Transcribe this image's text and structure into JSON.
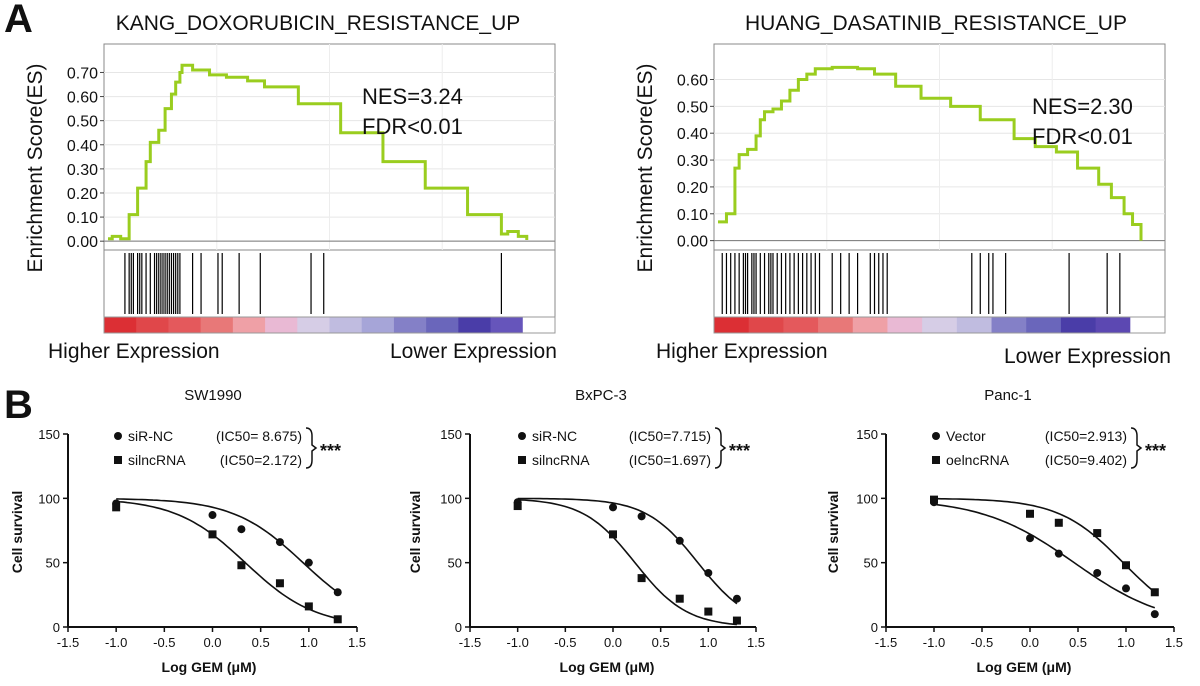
{
  "panel_labels": [
    "A",
    "B"
  ],
  "gsea": [
    {
      "title": "KANG_DOXORUBICIN_RESISTANCE_UP",
      "ylabel": "Enrichment Score(ES)",
      "yticks": [
        "0.00",
        "0.10",
        "0.20",
        "0.30",
        "0.40",
        "0.50",
        "0.60",
        "0.70"
      ],
      "nes": "NES=3.24",
      "fdr": "FDR<0.01",
      "left_label": "Higher Expression",
      "right_label": "Lower Expression",
      "line_color": "#9acd1f",
      "ylim": [
        -0.02,
        0.76
      ],
      "es_curve": [
        [
          0,
          0.01
        ],
        [
          0.01,
          0.02
        ],
        [
          0.03,
          0.01
        ],
        [
          0.05,
          0.11
        ],
        [
          0.07,
          0.22
        ],
        [
          0.09,
          0.33
        ],
        [
          0.1,
          0.41
        ],
        [
          0.12,
          0.46
        ],
        [
          0.135,
          0.55
        ],
        [
          0.15,
          0.61
        ],
        [
          0.16,
          0.66
        ],
        [
          0.17,
          0.7
        ],
        [
          0.175,
          0.73
        ],
        [
          0.2,
          0.71
        ],
        [
          0.24,
          0.69
        ],
        [
          0.28,
          0.68
        ],
        [
          0.33,
          0.665
        ],
        [
          0.37,
          0.64
        ],
        [
          0.45,
          0.57
        ],
        [
          0.55,
          0.45
        ],
        [
          0.65,
          0.33
        ],
        [
          0.75,
          0.22
        ],
        [
          0.85,
          0.11
        ],
        [
          0.93,
          0.03
        ],
        [
          0.945,
          0.04
        ],
        [
          0.97,
          0.02
        ],
        [
          0.99,
          0.005
        ]
      ],
      "hits": [
        0.04,
        0.05,
        0.055,
        0.06,
        0.07,
        0.075,
        0.08,
        0.09,
        0.1,
        0.11,
        0.115,
        0.12,
        0.125,
        0.13,
        0.135,
        0.14,
        0.145,
        0.15,
        0.155,
        0.16,
        0.165,
        0.17,
        0.2,
        0.22,
        0.26,
        0.27,
        0.31,
        0.36,
        0.48,
        0.51,
        0.93
      ],
      "heat_colors": [
        "#dc2f34",
        "#e0474a",
        "#e4595c",
        "#e87878",
        "#efa0a6",
        "#e9b9d4",
        "#d6cde6",
        "#c0bce0",
        "#a6a5d8",
        "#8480c7",
        "#6a66bb",
        "#4a3da8",
        "#6655bb",
        "#ffffff"
      ]
    },
    {
      "title": "HUANG_DASATINIB_RESISTANCE_UP",
      "ylabel": "Enrichment Score(ES)",
      "yticks": [
        "0.00",
        "0.10",
        "0.20",
        "0.30",
        "0.40",
        "0.50",
        "0.60"
      ],
      "nes": "NES=2.30",
      "fdr": "FDR<0.01",
      "left_label": "Higher Expression",
      "right_label": "Lower Expression",
      "line_color": "#9acd1f",
      "ylim": [
        -0.02,
        0.68
      ],
      "es_curve": [
        [
          0,
          0.07
        ],
        [
          0.02,
          0.1
        ],
        [
          0.04,
          0.27
        ],
        [
          0.05,
          0.32
        ],
        [
          0.07,
          0.34
        ],
        [
          0.09,
          0.39
        ],
        [
          0.1,
          0.45
        ],
        [
          0.11,
          0.48
        ],
        [
          0.13,
          0.49
        ],
        [
          0.15,
          0.52
        ],
        [
          0.17,
          0.56
        ],
        [
          0.19,
          0.6
        ],
        [
          0.21,
          0.62
        ],
        [
          0.23,
          0.64
        ],
        [
          0.27,
          0.645
        ],
        [
          0.33,
          0.64
        ],
        [
          0.37,
          0.62
        ],
        [
          0.42,
          0.575
        ],
        [
          0.48,
          0.53
        ],
        [
          0.55,
          0.5
        ],
        [
          0.62,
          0.45
        ],
        [
          0.7,
          0.38
        ],
        [
          0.75,
          0.35
        ],
        [
          0.8,
          0.33
        ],
        [
          0.85,
          0.27
        ],
        [
          0.9,
          0.21
        ],
        [
          0.93,
          0.16
        ],
        [
          0.96,
          0.1
        ],
        [
          0.98,
          0.06
        ],
        [
          1.0,
          0.0
        ]
      ],
      "hits": [
        0.01,
        0.02,
        0.03,
        0.04,
        0.05,
        0.06,
        0.065,
        0.07,
        0.08,
        0.085,
        0.09,
        0.1,
        0.11,
        0.12,
        0.125,
        0.13,
        0.14,
        0.15,
        0.16,
        0.17,
        0.18,
        0.19,
        0.2,
        0.21,
        0.22,
        0.23,
        0.24,
        0.27,
        0.29,
        0.31,
        0.33,
        0.36,
        0.37,
        0.38,
        0.39,
        0.4,
        0.6,
        0.62,
        0.64,
        0.65,
        0.68,
        0.83,
        0.92,
        0.95
      ],
      "heat_colors": [
        "#dc2f34",
        "#e0474a",
        "#e4595c",
        "#e87878",
        "#efa0a6",
        "#e9b9d4",
        "#d6cde6",
        "#c0bce0",
        "#8480c7",
        "#6a66bb",
        "#4a3da8",
        "#5c48b2",
        "#ffffff"
      ]
    }
  ],
  "chart_data": [
    {
      "type": "scatter",
      "title": "SW1990",
      "xlabel": "Log GEM (μM)",
      "ylabel": "Cell survival",
      "xlim": [
        -1.5,
        1.5
      ],
      "ylim": [
        0,
        150
      ],
      "xticks": [
        "-1.5",
        "-1.0",
        "-0.5",
        "0.0",
        "0.5",
        "1.0",
        "1.5"
      ],
      "yticks": [
        "0",
        "50",
        "100",
        "150"
      ],
      "stars": "***",
      "series": [
        {
          "name": "siR-NC",
          "ic50_text": "(IC50= 8.675)",
          "marker": "circle",
          "logIC50": 0.94,
          "hill": 1.2,
          "x": [
            -1.0,
            0.0,
            0.3,
            0.7,
            1.0,
            1.3
          ],
          "y": [
            96,
            87,
            76,
            66,
            50,
            27
          ]
        },
        {
          "name": "silncRNA",
          "ic50_text": "(IC50=2.172)",
          "marker": "square",
          "logIC50": 0.34,
          "hill": 1.2,
          "x": [
            -1.0,
            0.0,
            0.3,
            0.7,
            1.0,
            1.3
          ],
          "y": [
            93,
            72,
            48,
            34,
            16,
            6
          ]
        }
      ]
    },
    {
      "type": "scatter",
      "title": "BxPC-3",
      "xlabel": "Log GEM (μM)",
      "ylabel": "Cell survival",
      "xlim": [
        -1.5,
        1.5
      ],
      "ylim": [
        0,
        150
      ],
      "xticks": [
        "-1.5",
        "-1.0",
        "-0.5",
        "0.0",
        "0.5",
        "1.0",
        "1.5"
      ],
      "yticks": [
        "0",
        "50",
        "100",
        "150"
      ],
      "stars": "***",
      "series": [
        {
          "name": "siR-NC",
          "ic50_text": "(IC50=7.715)",
          "marker": "circle",
          "logIC50": 0.89,
          "hill": 1.6,
          "x": [
            -1.0,
            0.0,
            0.3,
            0.7,
            1.0,
            1.3
          ],
          "y": [
            97,
            93,
            86,
            67,
            42,
            22
          ]
        },
        {
          "name": "silncRNA",
          "ic50_text": "(IC50=1.697)",
          "marker": "square",
          "logIC50": 0.23,
          "hill": 1.6,
          "x": [
            -1.0,
            0.0,
            0.3,
            0.7,
            1.0,
            1.3
          ],
          "y": [
            94,
            72,
            38,
            22,
            12,
            5
          ]
        }
      ]
    },
    {
      "type": "scatter",
      "title": "Panc-1",
      "xlabel": "Log GEM (μM)",
      "ylabel": "Cell survival",
      "xlim": [
        -1.5,
        1.5
      ],
      "ylim": [
        0,
        150
      ],
      "xticks": [
        "-1.5",
        "-1.0",
        "-0.5",
        "0.0",
        "0.5",
        "1.0",
        "1.5"
      ],
      "yticks": [
        "0",
        "50",
        "100",
        "150"
      ],
      "stars": "***",
      "series": [
        {
          "name": "Vector",
          "ic50_text": "(IC50=2.913)",
          "marker": "circle",
          "logIC50": 0.46,
          "hill": 0.9,
          "x": [
            -1.0,
            0.0,
            0.3,
            0.7,
            1.0,
            1.3
          ],
          "y": [
            97,
            69,
            57,
            42,
            30,
            10
          ]
        },
        {
          "name": "oelncRNA",
          "ic50_text": "(IC50=9.402)",
          "marker": "square",
          "logIC50": 0.97,
          "hill": 1.3,
          "x": [
            -1.0,
            0.0,
            0.3,
            0.7,
            1.0,
            1.3
          ],
          "y": [
            99,
            88,
            81,
            73,
            48,
            27
          ]
        }
      ]
    }
  ]
}
